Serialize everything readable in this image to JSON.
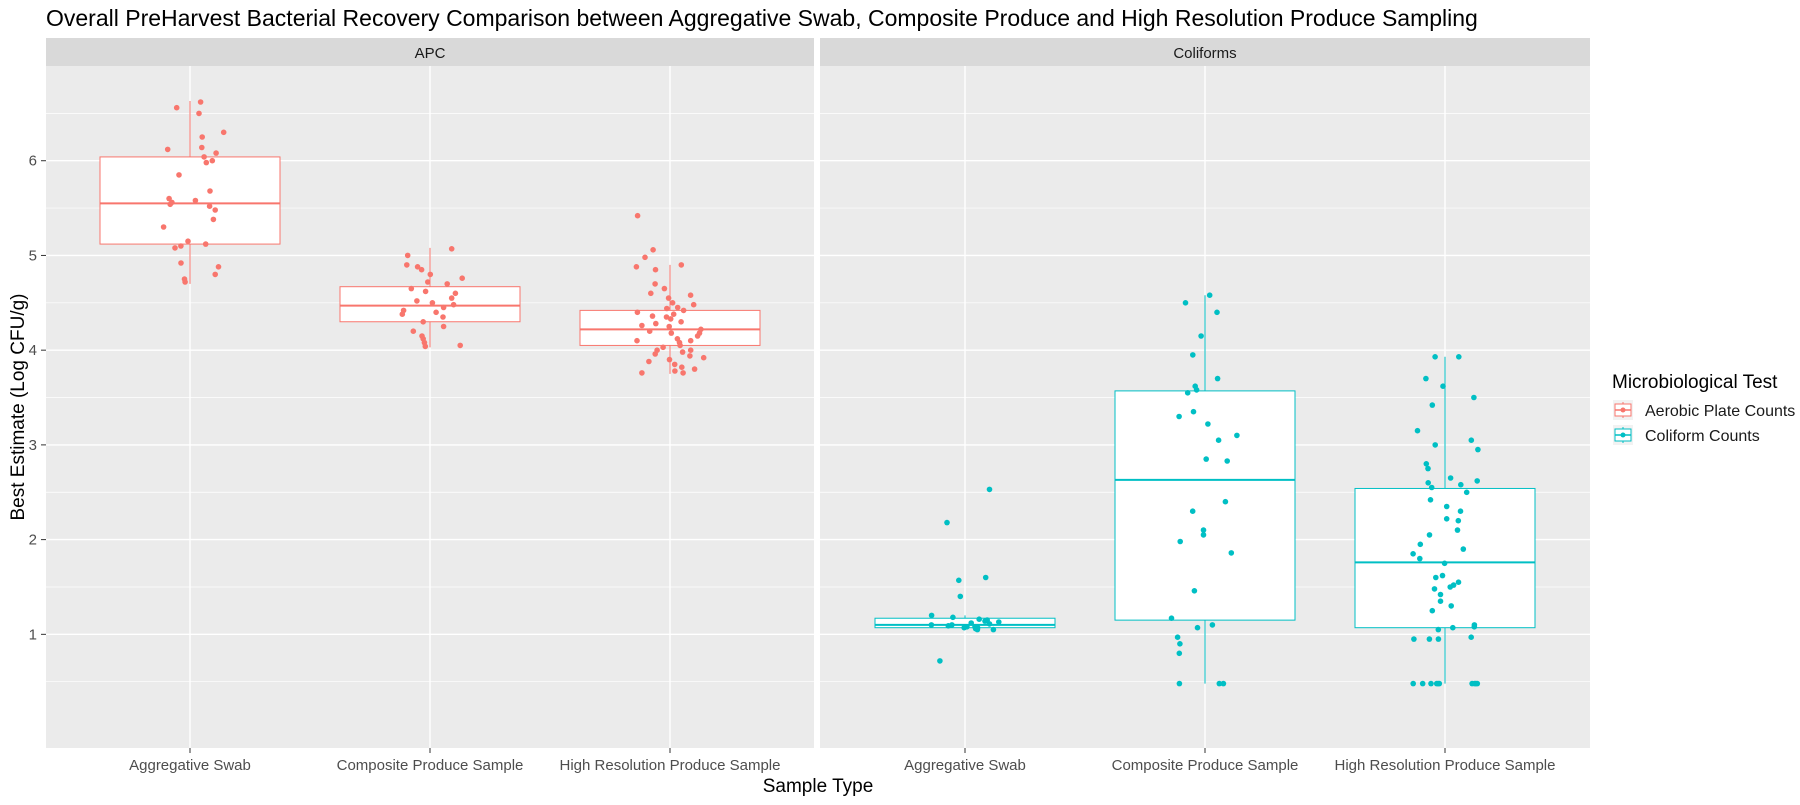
{
  "chart_data": {
    "type": "boxplot",
    "title": "Overall PreHarvest Bacterial Recovery Comparison between Aggregative Swab, Composite Produce and High Resolution Produce Sampling",
    "xlabel": "Sample Type",
    "ylabel": "Best Estimate (Log CFU/g)",
    "ylim": [
      -0.2,
      7.0
    ],
    "yticks": [
      1,
      2,
      3,
      4,
      5,
      6
    ],
    "grid": true,
    "legend": {
      "title": "Microbiological Test",
      "position": "right",
      "entries": [
        {
          "label": "Aerobic Plate Counts",
          "color": "#F8766D"
        },
        {
          "label": "Coliform Counts",
          "color": "#00BFC4"
        }
      ]
    },
    "categories": [
      "Aggregative Swab",
      "Composite Produce Sample",
      "High Resolution Produce Sample"
    ],
    "panels": [
      {
        "strip": "APC",
        "color": "#F8766D",
        "boxes": [
          {
            "category": "Aggregative Swab",
            "min": 4.7,
            "q1": 5.12,
            "median": 5.55,
            "q3": 6.04,
            "max": 6.63,
            "points": [
              6.62,
              6.56,
              6.5,
              6.3,
              6.25,
              6.14,
              6.12,
              6.08,
              6.04,
              6.0,
              5.98,
              5.85,
              5.68,
              5.6,
              5.58,
              5.56,
              5.54,
              5.52,
              5.48,
              5.38,
              5.3,
              5.15,
              5.12,
              5.1,
              5.08,
              4.92,
              4.88,
              4.8,
              4.75,
              4.72
            ]
          },
          {
            "category": "Composite Produce Sample",
            "min": 4.03,
            "q1": 4.3,
            "median": 4.47,
            "q3": 4.67,
            "max": 5.08,
            "points": [
              5.07,
              5.0,
              4.9,
              4.88,
              4.85,
              4.8,
              4.76,
              4.72,
              4.7,
              4.65,
              4.62,
              4.6,
              4.55,
              4.52,
              4.5,
              4.48,
              4.45,
              4.42,
              4.4,
              4.38,
              4.35,
              4.3,
              4.25,
              4.2,
              4.15,
              4.12,
              4.08,
              4.05,
              4.04
            ]
          },
          {
            "category": "High Resolution Produce Sample",
            "min": 3.75,
            "q1": 4.05,
            "median": 4.22,
            "q3": 4.42,
            "max": 4.9,
            "points": [
              5.42,
              5.06,
              4.98,
              4.9,
              4.88,
              4.85,
              4.7,
              4.65,
              4.6,
              4.58,
              4.55,
              4.5,
              4.48,
              4.45,
              4.42,
              4.4,
              4.38,
              4.35,
              4.33,
              4.3,
              4.28,
              4.25,
              4.22,
              4.2,
              4.18,
              4.15,
              4.12,
              4.1,
              4.08,
              4.05,
              4.03,
              4.0,
              3.98,
              3.96,
              3.94,
              3.92,
              3.9,
              3.88,
              3.85,
              3.82,
              3.8,
              3.78,
              3.76,
              3.76,
              4.18,
              4.26,
              4.36,
              4.44,
              4.1,
              4.0
            ]
          }
        ]
      },
      {
        "strip": "Coliforms",
        "color": "#00BFC4",
        "boxes": [
          {
            "category": "Aggregative Swab",
            "min": 1.07,
            "q1": 1.07,
            "median": 1.1,
            "q3": 1.17,
            "max": 1.2,
            "points": [
              2.53,
              2.18,
              1.6,
              1.57,
              1.4,
              1.2,
              1.18,
              1.16,
              1.15,
              1.14,
              1.13,
              1.12,
              1.11,
              1.1,
              1.1,
              1.09,
              1.08,
              1.08,
              1.07,
              1.07,
              1.07,
              1.06,
              1.05,
              1.05,
              0.72
            ]
          },
          {
            "category": "Composite Produce Sample",
            "min": 0.48,
            "q1": 1.15,
            "median": 2.63,
            "q3": 3.57,
            "max": 4.58,
            "points": [
              4.58,
              4.5,
              4.4,
              4.15,
              3.95,
              3.7,
              3.62,
              3.58,
              3.55,
              3.35,
              3.3,
              3.22,
              3.1,
              3.05,
              2.85,
              2.83,
              2.4,
              2.3,
              2.1,
              2.05,
              1.98,
              1.86,
              1.46,
              1.17,
              1.1,
              1.07,
              0.97,
              0.9,
              0.8,
              0.48,
              0.48,
              0.48
            ]
          },
          {
            "category": "High Resolution Produce Sample",
            "min": 0.48,
            "q1": 1.07,
            "median": 1.76,
            "q3": 2.54,
            "max": 3.93,
            "points": [
              3.93,
              3.93,
              3.7,
              3.62,
              3.5,
              3.42,
              3.15,
              3.05,
              3.0,
              2.95,
              2.8,
              2.75,
              2.65,
              2.62,
              2.6,
              2.58,
              2.55,
              2.5,
              2.42,
              2.35,
              2.3,
              2.22,
              2.2,
              2.1,
              2.05,
              1.95,
              1.9,
              1.85,
              1.8,
              1.75,
              1.62,
              1.6,
              1.55,
              1.52,
              1.5,
              1.48,
              1.42,
              1.35,
              1.3,
              1.25,
              1.1,
              1.08,
              1.07,
              1.05,
              0.97,
              0.95,
              0.95,
              0.95,
              0.48,
              0.48,
              0.48,
              0.48,
              0.48,
              0.48,
              0.48,
              0.48,
              0.48,
              0.48
            ]
          }
        ]
      }
    ]
  }
}
